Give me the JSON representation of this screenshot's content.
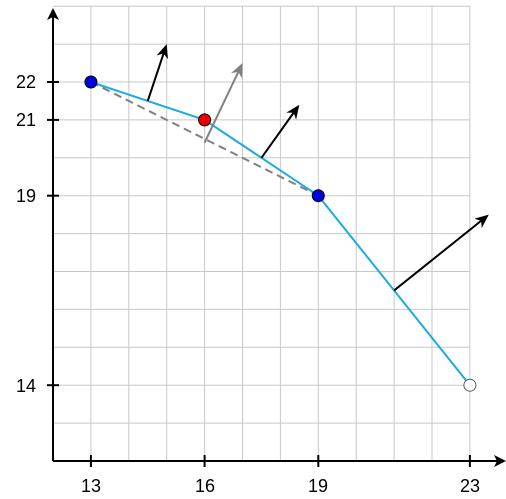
{
  "axes": {
    "x_ticks": [
      "13",
      "16",
      "19",
      "23"
    ],
    "y_ticks": [
      "22",
      "21",
      "19",
      "14"
    ]
  },
  "chart_data": {
    "type": "line",
    "x_range": [
      12,
      23
    ],
    "y_range": [
      12,
      24
    ],
    "grid": true,
    "grid_x_step": 1,
    "grid_y_step": 1,
    "polyline": [
      [
        13,
        22
      ],
      [
        16,
        21
      ],
      [
        19,
        19
      ],
      [
        23,
        14
      ]
    ],
    "dashed_segment": [
      [
        13,
        22
      ],
      [
        19,
        19
      ]
    ],
    "points": [
      {
        "x": 13,
        "y": 22,
        "color": "#0000dd",
        "style": "filled"
      },
      {
        "x": 16,
        "y": 21,
        "color": "#ee0000",
        "style": "filled"
      },
      {
        "x": 19,
        "y": 19,
        "color": "#0000dd",
        "style": "filled"
      },
      {
        "x": 23,
        "y": 14,
        "color": "#ffffff",
        "style": "hollow"
      }
    ],
    "normal_arrows": [
      {
        "from": [
          14.5,
          21.5
        ],
        "to": [
          15.0,
          23.0
        ],
        "color": "#000000"
      },
      {
        "from": [
          16.0,
          20.4
        ],
        "to": [
          17.0,
          22.5
        ],
        "color": "#808080"
      },
      {
        "from": [
          17.5,
          20.0
        ],
        "to": [
          18.5,
          21.4
        ],
        "color": "#000000"
      },
      {
        "from": [
          21.0,
          16.5
        ],
        "to": [
          23.5,
          18.5
        ],
        "color": "#000000"
      }
    ],
    "colors": {
      "line": "#1aabe0",
      "dashed": "#808080",
      "grid": "#c8c8c8",
      "axis": "#000000"
    }
  }
}
